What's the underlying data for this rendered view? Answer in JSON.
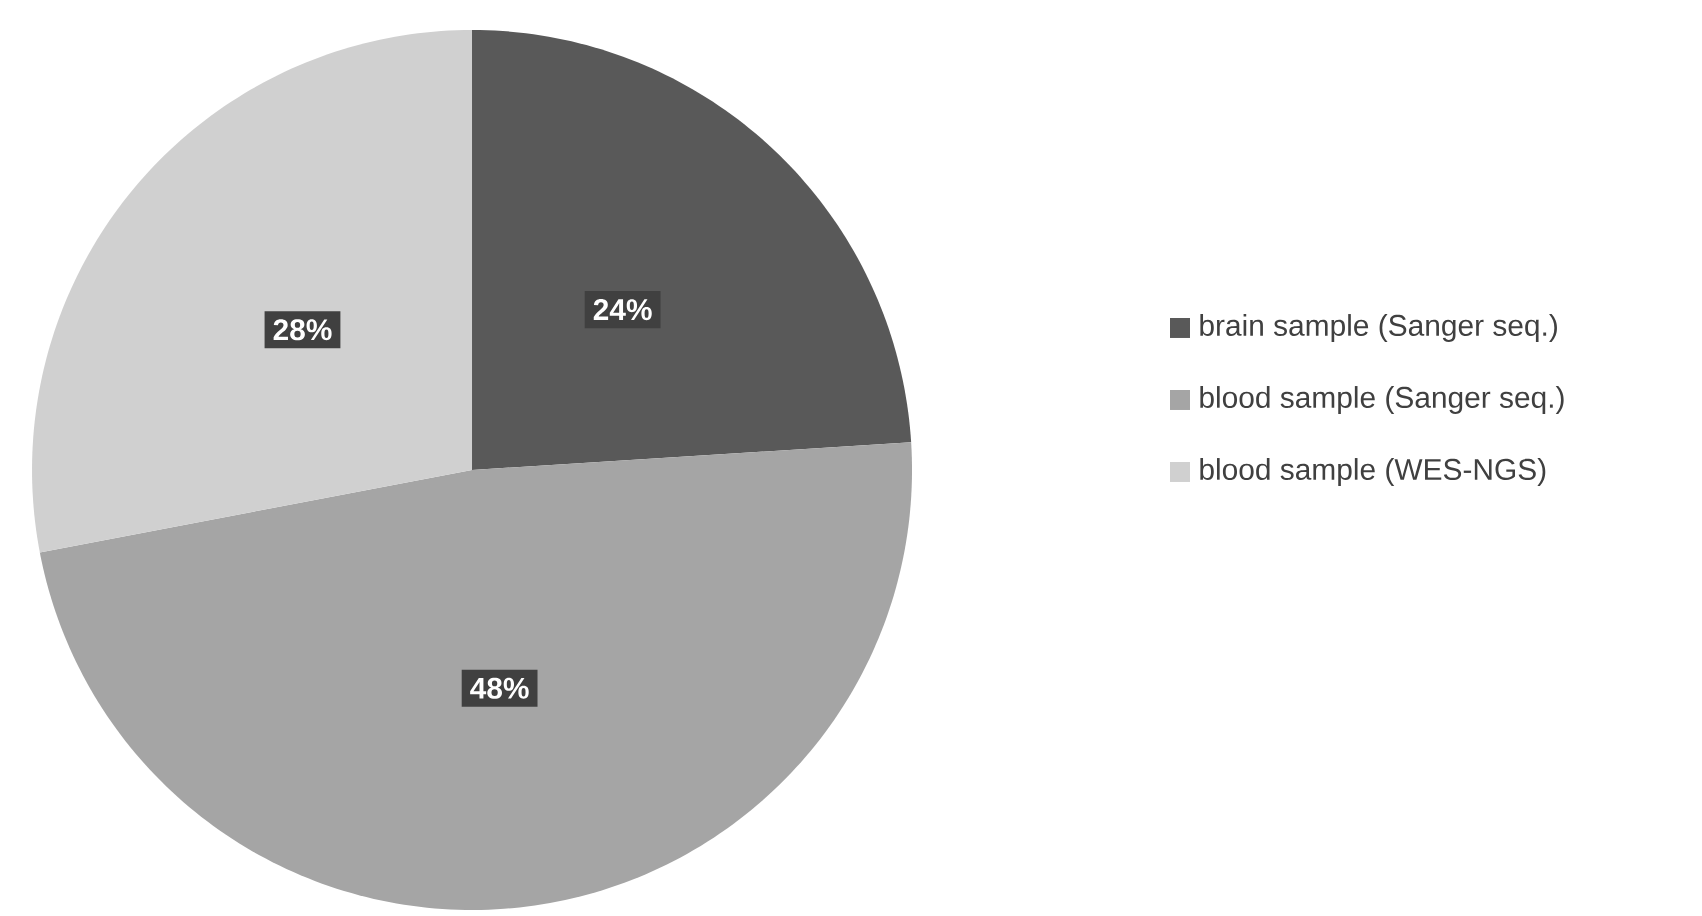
{
  "chart_data": {
    "type": "pie",
    "categories": [
      "brain sample (Sanger seq.)",
      "blood sample (Sanger seq.)",
      "blood sample (WES-NGS)"
    ],
    "values": [
      24,
      48,
      28
    ],
    "colors": [
      "#595959",
      "#a5a5a5",
      "#d0d0d0"
    ],
    "value_labels": [
      "24%",
      "48%",
      "28%"
    ],
    "legend": "right"
  }
}
